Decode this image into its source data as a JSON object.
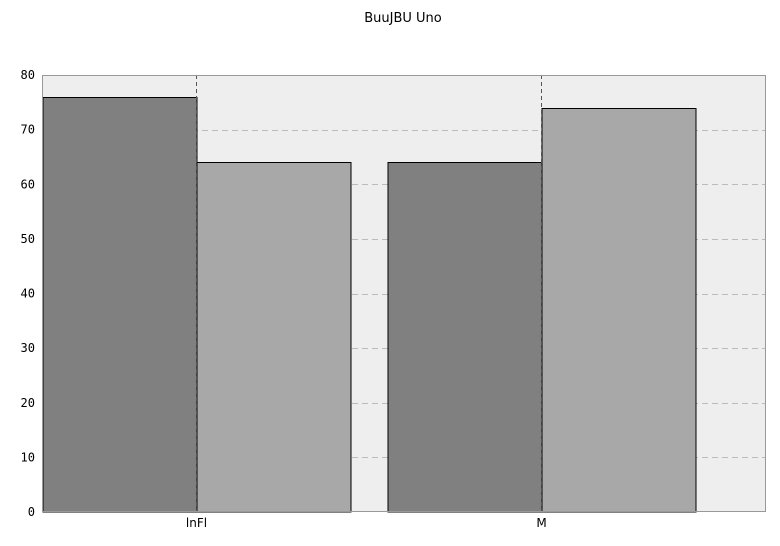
{
  "chart_data": {
    "type": "bar",
    "title": "BuuJBU Uno",
    "xlabel": "",
    "ylabel": "",
    "categories": [
      "lnFl",
      "M"
    ],
    "series": [
      {
        "values": [
          76,
          64
        ],
        "color": "#808080"
      },
      {
        "values": [
          64,
          74
        ],
        "color": "#a8a8a8"
      }
    ],
    "ylim": [
      0,
      80
    ],
    "yticks": [
      0,
      10,
      20,
      30,
      40,
      50,
      60,
      70,
      80
    ],
    "grid": true,
    "legend": "none",
    "colors": {
      "plot_background": "#eeeeee",
      "grid": "#bbbbbb"
    }
  }
}
